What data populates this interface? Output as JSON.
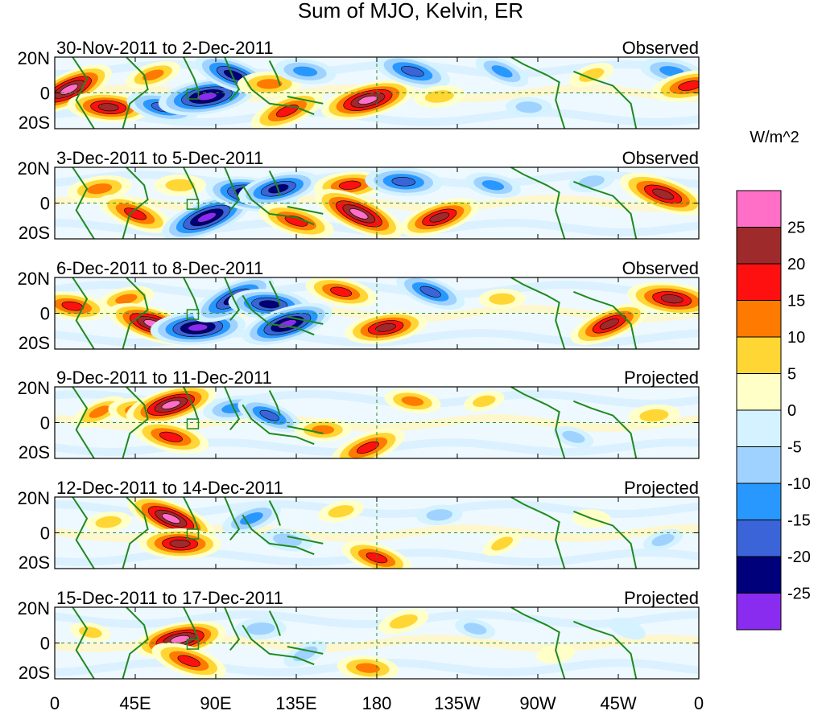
{
  "chart_data": {
    "type": "heatmap",
    "title": "Sum of MJO, Kelvin, ER",
    "units": "W/m^2",
    "x_ticks": [
      "0",
      "45E",
      "90E",
      "135E",
      "180",
      "135W",
      "90W",
      "45W",
      "0"
    ],
    "x_tick_values": [
      0,
      45,
      90,
      135,
      180,
      225,
      270,
      315,
      360
    ],
    "xlim": [
      0,
      360
    ],
    "y_ticks": [
      "20N",
      "0",
      "20S"
    ],
    "y_tick_values": [
      20,
      0,
      -20
    ],
    "ylim": [
      -20,
      20
    ],
    "panels": [
      {
        "period": "30-Nov-2011 to 2-Dec-2011",
        "label": "Observed",
        "blobs": [
          {
            "lon": 8,
            "lat": 2,
            "value": 26
          },
          {
            "lon": 30,
            "lat": -8,
            "value": 22
          },
          {
            "lon": 55,
            "lat": 10,
            "value": 12
          },
          {
            "lon": 60,
            "lat": -8,
            "value": -18
          },
          {
            "lon": 85,
            "lat": -2,
            "value": -28
          },
          {
            "lon": 100,
            "lat": 10,
            "value": -22
          },
          {
            "lon": 120,
            "lat": 5,
            "value": 15
          },
          {
            "lon": 130,
            "lat": -10,
            "value": 20
          },
          {
            "lon": 140,
            "lat": 12,
            "value": -14
          },
          {
            "lon": 175,
            "lat": -4,
            "value": 27
          },
          {
            "lon": 200,
            "lat": 12,
            "value": -20
          },
          {
            "lon": 215,
            "lat": -2,
            "value": 10
          },
          {
            "lon": 250,
            "lat": 12,
            "value": -12
          },
          {
            "lon": 265,
            "lat": -8,
            "value": -8
          },
          {
            "lon": 300,
            "lat": 10,
            "value": 8
          },
          {
            "lon": 345,
            "lat": 12,
            "value": -15
          },
          {
            "lon": 355,
            "lat": 4,
            "value": 20
          }
        ]
      },
      {
        "period": "3-Dec-2011 to 5-Dec-2011",
        "label": "Observed",
        "blobs": [
          {
            "lon": 25,
            "lat": 8,
            "value": 15
          },
          {
            "lon": 45,
            "lat": -6,
            "value": 20
          },
          {
            "lon": 70,
            "lat": 10,
            "value": 10
          },
          {
            "lon": 85,
            "lat": -8,
            "value": -27
          },
          {
            "lon": 110,
            "lat": 5,
            "value": -26
          },
          {
            "lon": 125,
            "lat": 8,
            "value": -22
          },
          {
            "lon": 135,
            "lat": -10,
            "value": 20
          },
          {
            "lon": 165,
            "lat": 10,
            "value": 18
          },
          {
            "lon": 170,
            "lat": -6,
            "value": 27
          },
          {
            "lon": 195,
            "lat": 12,
            "value": -20
          },
          {
            "lon": 215,
            "lat": -8,
            "value": 22
          },
          {
            "lon": 245,
            "lat": 10,
            "value": -12
          },
          {
            "lon": 300,
            "lat": 12,
            "value": -8
          },
          {
            "lon": 340,
            "lat": 5,
            "value": 25
          }
        ]
      },
      {
        "period": "6-Dec-2011 to 8-Dec-2011",
        "label": "Observed",
        "blobs": [
          {
            "lon": 10,
            "lat": 4,
            "value": 18
          },
          {
            "lon": 40,
            "lat": 8,
            "value": 12
          },
          {
            "lon": 55,
            "lat": -6,
            "value": 26
          },
          {
            "lon": 80,
            "lat": -8,
            "value": -27
          },
          {
            "lon": 100,
            "lat": 8,
            "value": -24
          },
          {
            "lon": 120,
            "lat": 5,
            "value": -22
          },
          {
            "lon": 130,
            "lat": -6,
            "value": -26
          },
          {
            "lon": 160,
            "lat": 12,
            "value": 18
          },
          {
            "lon": 185,
            "lat": -8,
            "value": 22
          },
          {
            "lon": 210,
            "lat": 12,
            "value": -18
          },
          {
            "lon": 250,
            "lat": 8,
            "value": 8
          },
          {
            "lon": 310,
            "lat": -6,
            "value": 22
          },
          {
            "lon": 345,
            "lat": 8,
            "value": 25
          }
        ]
      },
      {
        "period": "9-Dec-2011 to 11-Dec-2011",
        "label": "Projected",
        "blobs": [
          {
            "lon": 25,
            "lat": 6,
            "value": 12
          },
          {
            "lon": 50,
            "lat": 6,
            "value": 18
          },
          {
            "lon": 65,
            "lat": 10,
            "value": 26
          },
          {
            "lon": 65,
            "lat": -8,
            "value": 20
          },
          {
            "lon": 100,
            "lat": 8,
            "value": -14
          },
          {
            "lon": 120,
            "lat": 4,
            "value": -16
          },
          {
            "lon": 150,
            "lat": -4,
            "value": 12
          },
          {
            "lon": 175,
            "lat": -14,
            "value": 20
          },
          {
            "lon": 200,
            "lat": 12,
            "value": 12
          },
          {
            "lon": 240,
            "lat": 12,
            "value": 6
          },
          {
            "lon": 290,
            "lat": -8,
            "value": -6
          },
          {
            "lon": 335,
            "lat": 4,
            "value": 10
          }
        ]
      },
      {
        "period": "12-Dec-2011 to 14-Dec-2011",
        "label": "Projected",
        "blobs": [
          {
            "lon": 30,
            "lat": 6,
            "value": 8
          },
          {
            "lon": 65,
            "lat": 8,
            "value": 26
          },
          {
            "lon": 70,
            "lat": -6,
            "value": 22
          },
          {
            "lon": 110,
            "lat": 8,
            "value": -14
          },
          {
            "lon": 130,
            "lat": -4,
            "value": -10
          },
          {
            "lon": 160,
            "lat": 12,
            "value": 8
          },
          {
            "lon": 180,
            "lat": -14,
            "value": 18
          },
          {
            "lon": 215,
            "lat": 10,
            "value": -8
          },
          {
            "lon": 250,
            "lat": -6,
            "value": 6
          },
          {
            "lon": 300,
            "lat": 8,
            "value": 5
          },
          {
            "lon": 340,
            "lat": -4,
            "value": -6
          }
        ]
      },
      {
        "period": "15-Dec-2011 to 17-Dec-2011",
        "label": "Projected",
        "blobs": [
          {
            "lon": 20,
            "lat": 6,
            "value": 6
          },
          {
            "lon": 70,
            "lat": 2,
            "value": 26
          },
          {
            "lon": 75,
            "lat": -10,
            "value": 20
          },
          {
            "lon": 115,
            "lat": 8,
            "value": -10
          },
          {
            "lon": 140,
            "lat": -6,
            "value": -8
          },
          {
            "lon": 175,
            "lat": -14,
            "value": 14
          },
          {
            "lon": 195,
            "lat": 12,
            "value": 10
          },
          {
            "lon": 235,
            "lat": 8,
            "value": -6
          },
          {
            "lon": 280,
            "lat": -6,
            "value": 5
          },
          {
            "lon": 320,
            "lat": 8,
            "value": -5
          }
        ]
      }
    ],
    "colorbar": {
      "title": "W/m^2",
      "colors_top_to_bottom": [
        "#ff6ec7",
        "#9e2a2b",
        "#ff1010",
        "#ff7a00",
        "#ffd633",
        "#ffffc8",
        "#d4f2ff",
        "#a0d2ff",
        "#2898ff",
        "#3a64d8",
        "#00007a",
        "#8a2bf0"
      ],
      "tick_labels": [
        "25",
        "20",
        "15",
        "10",
        "5",
        "0",
        "-5",
        "-10",
        "-15",
        "-20",
        "-25"
      ],
      "levels_top_to_bottom": [
        25,
        20,
        15,
        10,
        5,
        0,
        -5,
        -10,
        -15,
        -20,
        -25
      ]
    }
  }
}
